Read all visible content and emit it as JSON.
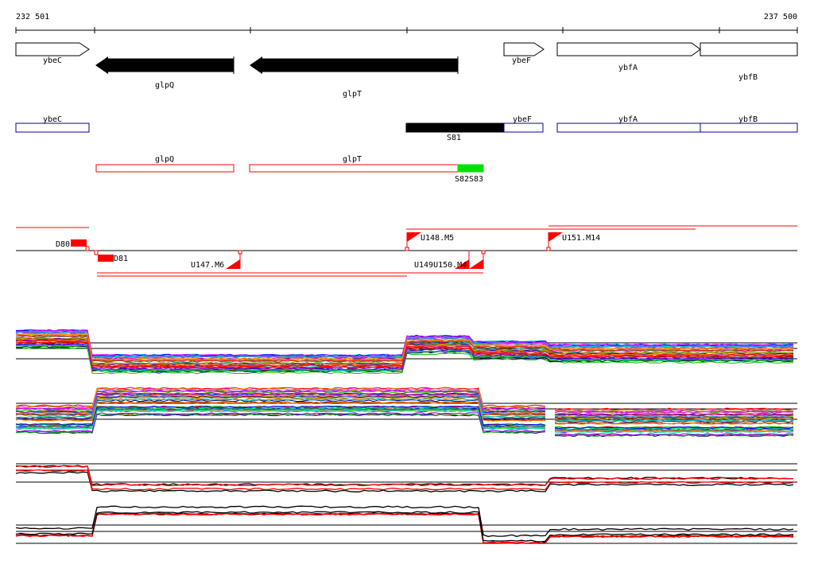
{
  "coords": {
    "start": "232 501",
    "end": "237 500"
  },
  "genes": [
    {
      "name": "ybeC",
      "strand": "+",
      "style": "open"
    },
    {
      "name": "glpQ",
      "strand": "-",
      "style": "filled"
    },
    {
      "name": "glpT",
      "strand": "-",
      "style": "filled"
    },
    {
      "name": "ybeF",
      "strand": "+",
      "style": "open"
    },
    {
      "name": "ybfA",
      "strand": "+",
      "style": "open"
    },
    {
      "name": "ybfB",
      "strand": "+",
      "style": "open"
    }
  ],
  "forward_boxes": [
    {
      "name": "ybeC"
    },
    {
      "name": "ybeF"
    },
    {
      "name": "ybfA"
    },
    {
      "name": "ybfB"
    }
  ],
  "forward_segments": [
    {
      "name": "S81",
      "color": "#000000"
    }
  ],
  "reverse_boxes": [
    {
      "name": "glpQ"
    },
    {
      "name": "glpT"
    }
  ],
  "reverse_segments": [
    {
      "name": "S82S83",
      "color": "#00e000"
    }
  ],
  "transcript_labels": {
    "D80": "D80",
    "D81": "D81",
    "U147": "U147.M6",
    "U148": "U148.M5",
    "U149": "U149U150.M4",
    "U151": "U151.M14"
  },
  "colors": {
    "forward": "#0000aa",
    "reverse": "#ff0000",
    "segment": "#000000",
    "accent": "#00e000"
  }
}
